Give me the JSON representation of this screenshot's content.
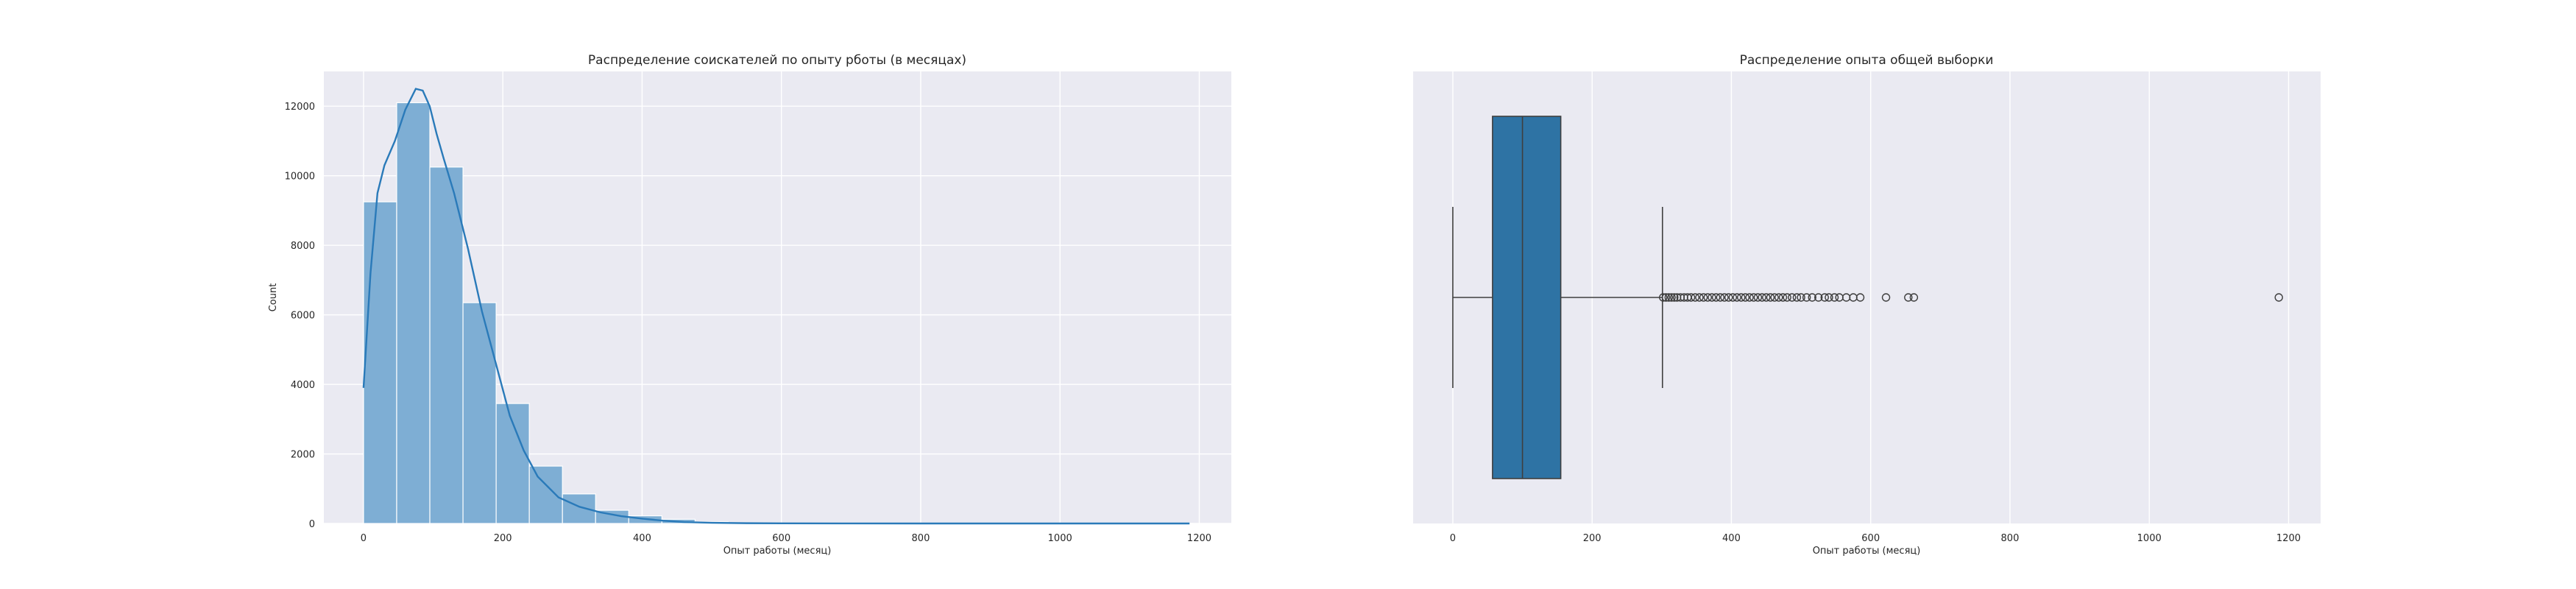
{
  "chart_data": [
    {
      "type": "bar",
      "title": "Распределение соискателей по опыту рботы (в месяцах)",
      "xlabel": "Опыт работы (месяц)",
      "ylabel": "Count",
      "xlim": [
        -57,
        1246
      ],
      "ylim": [
        0,
        13000
      ],
      "xticks": [
        0,
        200,
        400,
        600,
        800,
        1000,
        1200
      ],
      "yticks": [
        0,
        2000,
        4000,
        6000,
        8000,
        10000,
        12000
      ],
      "bin_width": 47.6,
      "bins": [
        {
          "x0": 0,
          "count": 9250
        },
        {
          "x0": 47.6,
          "count": 12100
        },
        {
          "x0": 95.2,
          "count": 10250
        },
        {
          "x0": 142.8,
          "count": 6350
        },
        {
          "x0": 190.4,
          "count": 3450
        },
        {
          "x0": 238,
          "count": 1650
        },
        {
          "x0": 285.6,
          "count": 850
        },
        {
          "x0": 333.2,
          "count": 380
        },
        {
          "x0": 380.8,
          "count": 220
        },
        {
          "x0": 428.4,
          "count": 120
        },
        {
          "x0": 476,
          "count": 45
        },
        {
          "x0": 523.6,
          "count": 20
        },
        {
          "x0": 571.2,
          "count": 8
        },
        {
          "x0": 618.8,
          "count": 4
        },
        {
          "x0": 666.4,
          "count": 2
        },
        {
          "x0": 714,
          "count": 1
        },
        {
          "x0": 761.6,
          "count": 0
        },
        {
          "x0": 809.2,
          "count": 0
        },
        {
          "x0": 856.8,
          "count": 0
        },
        {
          "x0": 904.4,
          "count": 0
        },
        {
          "x0": 952,
          "count": 0
        },
        {
          "x0": 999.6,
          "count": 0
        },
        {
          "x0": 1047.2,
          "count": 0
        },
        {
          "x0": 1094.8,
          "count": 0
        },
        {
          "x0": 1142.4,
          "count": 1
        }
      ],
      "kde": {
        "x": [
          0,
          10,
          20,
          30,
          45,
          60,
          75,
          85,
          95,
          105,
          115,
          130,
          150,
          170,
          190,
          210,
          230,
          250,
          280,
          310,
          340,
          370,
          400,
          430,
          460,
          500,
          550,
          600,
          700,
          800,
          900,
          1000,
          1100,
          1186
        ],
        "y": [
          3900,
          7200,
          9500,
          10300,
          11000,
          11900,
          12500,
          12450,
          12000,
          11200,
          10500,
          9500,
          7900,
          6100,
          4600,
          3100,
          2100,
          1350,
          750,
          480,
          320,
          210,
          140,
          80,
          40,
          20,
          8,
          4,
          1,
          0,
          0,
          0,
          0,
          0
        ]
      },
      "colors": {
        "bar": "#7eaed4",
        "bar_edge": "#ffffff",
        "kde": "#2a7ab9",
        "background": "#eaeaf2",
        "grid": "#ffffff"
      },
      "grid": true
    },
    {
      "type": "box",
      "title": "Распределение опыта общей выборки",
      "xlabel": "Опыт работы (месяц)",
      "xlim": [
        -57,
        1246
      ],
      "xticks": [
        0,
        200,
        400,
        600,
        800,
        1000,
        1200
      ],
      "box": {
        "whisker_low": 0,
        "q1": 57,
        "median": 100,
        "q3": 155,
        "whisker_high": 301
      },
      "outliers": [
        302,
        306,
        310,
        314,
        318,
        322,
        327,
        332,
        337,
        342,
        348,
        354,
        360,
        366,
        372,
        378,
        384,
        390,
        396,
        402,
        408,
        414,
        420,
        426,
        432,
        438,
        444,
        450,
        456,
        462,
        468,
        474,
        480,
        487,
        494,
        500,
        508,
        516,
        525,
        534,
        540,
        548,
        555,
        565,
        575,
        585,
        622,
        654,
        662,
        1186
      ],
      "colors": {
        "box": "#2e73a4",
        "line": "#3f3f3f",
        "background": "#eaeaf2",
        "grid": "#ffffff"
      },
      "grid": true
    }
  ]
}
